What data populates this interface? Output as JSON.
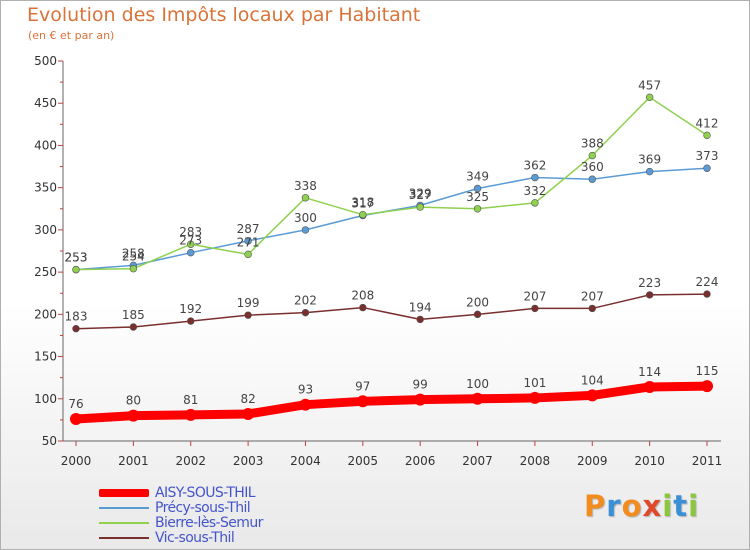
{
  "title": "Evolution des Impôts locaux par Habitant",
  "subtitle": "(en € et par an)",
  "logo": {
    "letters": [
      "P",
      "r",
      "o",
      "x",
      "i",
      "t",
      "i"
    ],
    "colors": [
      "#f28c1e",
      "#3b8fd6",
      "#f28c1e",
      "#e04a2b",
      "#8cc63e",
      "#3b8fd6",
      "#8cc63e"
    ]
  },
  "chart_data": {
    "type": "line",
    "x": [
      "2000",
      "2001",
      "2002",
      "2003",
      "2004",
      "2005",
      "2006",
      "2007",
      "2008",
      "2009",
      "2010",
      "2011"
    ],
    "ylim": [
      50,
      500
    ],
    "yticks": [
      "50",
      "100",
      "150",
      "200",
      "250",
      "300",
      "350",
      "400",
      "450",
      "500"
    ],
    "grid": false,
    "legend_position": "bottom-left",
    "series": [
      {
        "name": "AISY-SOUS-THIL",
        "color": "#ff0000",
        "values": [
          76,
          80,
          81,
          82,
          93,
          97,
          99,
          100,
          101,
          104,
          114,
          115
        ],
        "labels": [
          "76",
          "80",
          "81",
          "82",
          "93",
          "97",
          "99",
          "100",
          "101",
          "104",
          "114",
          "115"
        ]
      },
      {
        "name": "Précy-sous-Thil",
        "color": "#5b9bd5",
        "values": [
          253,
          258,
          273,
          287,
          300,
          317,
          329,
          349,
          362,
          360,
          369,
          373
        ],
        "labels": [
          "253",
          "258",
          "273",
          "287",
          "300",
          "317",
          "329",
          "349",
          "362",
          "360",
          "369",
          "373"
        ]
      },
      {
        "name": "Bierre-lès-Semur",
        "color": "#8fd14f",
        "values": [
          253,
          254,
          283,
          271,
          338,
          318,
          327,
          325,
          332,
          388,
          457,
          412
        ],
        "labels": [
          "253",
          "254",
          "283",
          "271",
          "338",
          "318",
          "327",
          "325",
          "332",
          "388",
          "457",
          "412"
        ]
      },
      {
        "name": "Vic-sous-Thil",
        "color": "#7a2f2f",
        "values": [
          183,
          185,
          192,
          199,
          202,
          208,
          194,
          200,
          207,
          207,
          223,
          224
        ],
        "labels": [
          "183",
          "185",
          "192",
          "199",
          "202",
          "208",
          "194",
          "200",
          "207",
          "207",
          "223",
          "224"
        ]
      }
    ]
  }
}
